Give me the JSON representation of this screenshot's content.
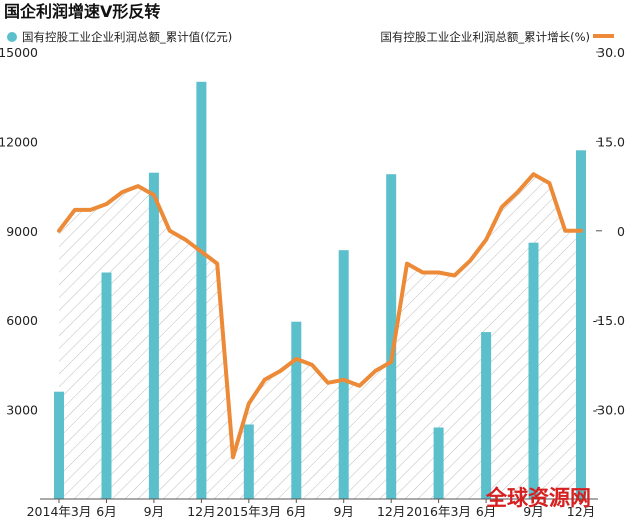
{
  "header": {
    "title": "国企利润增速V形反转"
  },
  "watermark": {
    "text": "全球资源网"
  },
  "colors": {
    "bar": "#5bbfcc",
    "line": "#ec8a37",
    "hatch": "#b8b8b8",
    "axis": "#555555"
  },
  "chart_data": {
    "type": "bar",
    "title": "国企利润增速V形反转",
    "legend_placement": "top",
    "grid": false,
    "x_labels": [
      "2014年3月",
      "6月",
      "9月",
      "12月",
      "2015年3月",
      "6月",
      "9月",
      "12月",
      "2016年3月",
      "6月",
      "9月",
      "12月"
    ],
    "bars": {
      "name": "国有控股工业企业利润总额_累计值(亿元)",
      "axis": "left",
      "x_months": [
        3,
        6,
        9,
        12,
        15,
        18,
        21,
        24,
        27,
        30,
        33,
        36
      ],
      "values": [
        3600,
        7600,
        10950,
        14000,
        2500,
        5950,
        8350,
        10900,
        2400,
        5600,
        8600,
        11700
      ]
    },
    "line": {
      "name": "国有控股工业企业利润总额_累计增长(%)",
      "axis": "right",
      "x_months": [
        3,
        4,
        5,
        6,
        7,
        8,
        9,
        10,
        11,
        12,
        13,
        14,
        15,
        16,
        17,
        18,
        19,
        20,
        21,
        22,
        23,
        24,
        25,
        26,
        27,
        28,
        29,
        30,
        31,
        32,
        33,
        34,
        35,
        36
      ],
      "values": [
        0,
        3.5,
        3.5,
        4.5,
        6.5,
        7.5,
        6,
        0,
        -1.5,
        -3.5,
        -5.5,
        -38,
        -29,
        -25,
        -23.5,
        -21.5,
        -22.5,
        -25.5,
        -25,
        -26,
        -23.5,
        -22,
        -5.5,
        -7,
        -7,
        -7.5,
        -5,
        -1.5,
        4,
        6.5,
        9.5,
        8,
        0,
        0
      ],
      "values_note": ""
    },
    "y_left": {
      "min": 0,
      "max": 15000,
      "ticks": [
        "3000",
        "6000",
        "9000",
        "12000",
        "15000"
      ]
    },
    "y_right": {
      "min": -45,
      "max": 30,
      "ticks": [
        "30.0",
        "15.0",
        "0",
        "-15.0",
        "-30.0"
      ]
    }
  }
}
